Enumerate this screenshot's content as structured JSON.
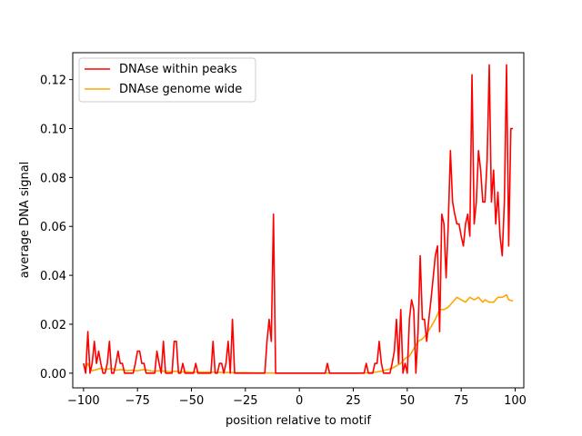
{
  "chart_data": {
    "type": "line",
    "xlabel": "position relative to motif",
    "ylabel": "average DNA signal",
    "xlim": [
      -105,
      104
    ],
    "ylim": [
      -0.006,
      0.131
    ],
    "x_ticks": [
      -100,
      -75,
      -50,
      -25,
      0,
      25,
      50,
      75,
      100
    ],
    "y_ticks": [
      0.0,
      0.02,
      0.04,
      0.06,
      0.08,
      0.1,
      0.12
    ],
    "x_tick_labels": [
      "−100",
      "−75",
      "−50",
      "−25",
      "0",
      "25",
      "50",
      "75",
      "100"
    ],
    "y_tick_labels": [
      "0.00",
      "0.02",
      "0.04",
      "0.06",
      "0.08",
      "0.10",
      "0.12"
    ],
    "grid": false,
    "legend_position": "upper-left",
    "series": [
      {
        "name": "DNAse within peaks",
        "color": "#ff0000",
        "points": [
          [
            -100,
            0.004
          ],
          [
            -99,
            0.0
          ],
          [
            -98,
            0.017
          ],
          [
            -97,
            0.0
          ],
          [
            -96,
            0.004
          ],
          [
            -95,
            0.013
          ],
          [
            -94,
            0.004
          ],
          [
            -93,
            0.009
          ],
          [
            -92,
            0.004
          ],
          [
            -91,
            0.0
          ],
          [
            -90,
            0.0
          ],
          [
            -89,
            0.004
          ],
          [
            -88,
            0.013
          ],
          [
            -87,
            0.0
          ],
          [
            -86,
            0.0
          ],
          [
            -85,
            0.004
          ],
          [
            -84,
            0.009
          ],
          [
            -83,
            0.004
          ],
          [
            -82,
            0.004
          ],
          [
            -81,
            0.0
          ],
          [
            -80,
            0.0
          ],
          [
            -79,
            0.0
          ],
          [
            -78,
            0.0
          ],
          [
            -77,
            0.0
          ],
          [
            -76,
            0.004
          ],
          [
            -75,
            0.009
          ],
          [
            -74,
            0.009
          ],
          [
            -73,
            0.004
          ],
          [
            -72,
            0.004
          ],
          [
            -71,
            0.0
          ],
          [
            -70,
            0.0
          ],
          [
            -69,
            0.0
          ],
          [
            -68,
            0.0
          ],
          [
            -67,
            0.0
          ],
          [
            -66,
            0.009
          ],
          [
            -65,
            0.004
          ],
          [
            -64,
            0.0
          ],
          [
            -63,
            0.013
          ],
          [
            -62,
            0.0
          ],
          [
            -61,
            0.0
          ],
          [
            -60,
            0.0
          ],
          [
            -59,
            0.0
          ],
          [
            -58,
            0.013
          ],
          [
            -57,
            0.013
          ],
          [
            -56,
            0.0
          ],
          [
            -55,
            0.0
          ],
          [
            -54,
            0.004
          ],
          [
            -53,
            0.0
          ],
          [
            -52,
            0.0
          ],
          [
            -51,
            0.0
          ],
          [
            -50,
            0.0
          ],
          [
            -49,
            0.0
          ],
          [
            -48,
            0.004
          ],
          [
            -47,
            0.0
          ],
          [
            -46,
            0.0
          ],
          [
            -45,
            0.0
          ],
          [
            -44,
            0.0
          ],
          [
            -43,
            0.0
          ],
          [
            -42,
            0.0
          ],
          [
            -41,
            0.0
          ],
          [
            -40,
            0.013
          ],
          [
            -39,
            0.0
          ],
          [
            -38,
            0.0
          ],
          [
            -37,
            0.004
          ],
          [
            -36,
            0.004
          ],
          [
            -35,
            0.0
          ],
          [
            -34,
            0.004
          ],
          [
            -33,
            0.013
          ],
          [
            -32,
            0.0
          ],
          [
            -31,
            0.022
          ],
          [
            -30,
            0.0
          ],
          [
            -29,
            0.0
          ],
          [
            -28,
            0.0
          ],
          [
            -27,
            0.0
          ],
          [
            -26,
            0.0
          ],
          [
            -25,
            0.0
          ],
          [
            -24,
            0.0
          ],
          [
            -23,
            0.0
          ],
          [
            -22,
            0.0
          ],
          [
            -21,
            0.0
          ],
          [
            -20,
            0.0
          ],
          [
            -19,
            0.0
          ],
          [
            -18,
            0.0
          ],
          [
            -17,
            0.0
          ],
          [
            -16,
            0.0
          ],
          [
            -15,
            0.013
          ],
          [
            -14,
            0.022
          ],
          [
            -13,
            0.013
          ],
          [
            -12,
            0.065
          ],
          [
            -11,
            0.0
          ],
          [
            -10,
            0.0
          ],
          [
            -9,
            0.0
          ],
          [
            -8,
            0.0
          ],
          [
            -7,
            0.0
          ],
          [
            -6,
            0.0
          ],
          [
            -5,
            0.0
          ],
          [
            -4,
            0.0
          ],
          [
            -3,
            0.0
          ],
          [
            -2,
            0.0
          ],
          [
            -1,
            0.0
          ],
          [
            0,
            0.0
          ],
          [
            1,
            0.0
          ],
          [
            2,
            0.0
          ],
          [
            3,
            0.0
          ],
          [
            4,
            0.0
          ],
          [
            5,
            0.0
          ],
          [
            6,
            0.0
          ],
          [
            7,
            0.0
          ],
          [
            8,
            0.0
          ],
          [
            9,
            0.0
          ],
          [
            10,
            0.0
          ],
          [
            11,
            0.0
          ],
          [
            12,
            0.0
          ],
          [
            13,
            0.004
          ],
          [
            14,
            0.0
          ],
          [
            15,
            0.0
          ],
          [
            16,
            0.0
          ],
          [
            17,
            0.0
          ],
          [
            18,
            0.0
          ],
          [
            19,
            0.0
          ],
          [
            20,
            0.0
          ],
          [
            21,
            0.0
          ],
          [
            22,
            0.0
          ],
          [
            23,
            0.0
          ],
          [
            24,
            0.0
          ],
          [
            25,
            0.0
          ],
          [
            26,
            0.0
          ],
          [
            27,
            0.0
          ],
          [
            28,
            0.0
          ],
          [
            29,
            0.0
          ],
          [
            30,
            0.0
          ],
          [
            31,
            0.004
          ],
          [
            32,
            0.0
          ],
          [
            33,
            0.0
          ],
          [
            34,
            0.0
          ],
          [
            35,
            0.004
          ],
          [
            36,
            0.004
          ],
          [
            37,
            0.013
          ],
          [
            38,
            0.004
          ],
          [
            39,
            0.0
          ],
          [
            40,
            0.0
          ],
          [
            41,
            0.0
          ],
          [
            42,
            0.0
          ],
          [
            43,
            0.004
          ],
          [
            44,
            0.009
          ],
          [
            45,
            0.022
          ],
          [
            46,
            0.004
          ],
          [
            47,
            0.026
          ],
          [
            48,
            0.0
          ],
          [
            49,
            0.004
          ],
          [
            50,
            0.0
          ],
          [
            51,
            0.022
          ],
          [
            52,
            0.03
          ],
          [
            53,
            0.026
          ],
          [
            54,
            0.0
          ],
          [
            55,
            0.017
          ],
          [
            56,
            0.048
          ],
          [
            57,
            0.022
          ],
          [
            58,
            0.022
          ],
          [
            59,
            0.013
          ],
          [
            60,
            0.022
          ],
          [
            61,
            0.03
          ],
          [
            62,
            0.039
          ],
          [
            63,
            0.048
          ],
          [
            64,
            0.052
          ],
          [
            65,
            0.017
          ],
          [
            66,
            0.065
          ],
          [
            67,
            0.061
          ],
          [
            68,
            0.039
          ],
          [
            69,
            0.061
          ],
          [
            70,
            0.091
          ],
          [
            71,
            0.07
          ],
          [
            72,
            0.065
          ],
          [
            73,
            0.061
          ],
          [
            74,
            0.061
          ],
          [
            75,
            0.056
          ],
          [
            76,
            0.052
          ],
          [
            77,
            0.061
          ],
          [
            78,
            0.065
          ],
          [
            79,
            0.056
          ],
          [
            80,
            0.122
          ],
          [
            81,
            0.061
          ],
          [
            82,
            0.07
          ],
          [
            83,
            0.091
          ],
          [
            84,
            0.083
          ],
          [
            85,
            0.07
          ],
          [
            86,
            0.07
          ],
          [
            87,
            0.087
          ],
          [
            88,
            0.126
          ],
          [
            89,
            0.07
          ],
          [
            90,
            0.083
          ],
          [
            91,
            0.061
          ],
          [
            92,
            0.074
          ],
          [
            93,
            0.056
          ],
          [
            94,
            0.048
          ],
          [
            95,
            0.07
          ],
          [
            96,
            0.126
          ],
          [
            97,
            0.052
          ],
          [
            98,
            0.1
          ],
          [
            99,
            0.1
          ]
        ]
      },
      {
        "name": "DNAse genome wide",
        "color": "#ffa500",
        "points": [
          [
            -100,
            0.003
          ],
          [
            -99,
            0.002
          ],
          [
            -98,
            0.004
          ],
          [
            -97,
            0.002
          ],
          [
            -96,
            0.001
          ],
          [
            -94,
            0.0015
          ],
          [
            -92,
            0.002
          ],
          [
            -90,
            0.0015
          ],
          [
            -87,
            0.002
          ],
          [
            -85,
            0.0012
          ],
          [
            -82,
            0.0015
          ],
          [
            -80,
            0.001
          ],
          [
            -78,
            0.0012
          ],
          [
            -75,
            0.001
          ],
          [
            -72,
            0.0015
          ],
          [
            -70,
            0.0012
          ],
          [
            -68,
            0.0008
          ],
          [
            -65,
            0.001
          ],
          [
            -62,
            0.0008
          ],
          [
            -60,
            0.0006
          ],
          [
            -57,
            0.0008
          ],
          [
            -55,
            0.0005
          ],
          [
            -52,
            0.0006
          ],
          [
            -50,
            0.0004
          ],
          [
            -45,
            0.0005
          ],
          [
            -40,
            0.0004
          ],
          [
            -35,
            0.0003
          ],
          [
            -30,
            0.0002
          ],
          [
            -25,
            0.0002
          ],
          [
            -20,
            0.0001
          ],
          [
            -15,
            0.0001
          ],
          [
            -10,
            0.0
          ],
          [
            -5,
            0.0
          ],
          [
            0,
            0.0
          ],
          [
            5,
            0.0
          ],
          [
            10,
            0.0
          ],
          [
            15,
            0.0
          ],
          [
            20,
            0.0
          ],
          [
            25,
            0.0
          ],
          [
            30,
            0.0001
          ],
          [
            33,
            0.0002
          ],
          [
            36,
            0.0005
          ],
          [
            39,
            0.001
          ],
          [
            41,
            0.0015
          ],
          [
            43,
            0.002
          ],
          [
            45,
            0.003
          ],
          [
            47,
            0.004
          ],
          [
            49,
            0.006
          ],
          [
            51,
            0.007
          ],
          [
            53,
            0.01
          ],
          [
            55,
            0.013
          ],
          [
            57,
            0.014
          ],
          [
            59,
            0.016
          ],
          [
            61,
            0.019
          ],
          [
            63,
            0.022
          ],
          [
            65,
            0.026
          ],
          [
            67,
            0.026
          ],
          [
            69,
            0.027
          ],
          [
            71,
            0.029
          ],
          [
            73,
            0.031
          ],
          [
            75,
            0.03
          ],
          [
            77,
            0.029
          ],
          [
            79,
            0.031
          ],
          [
            81,
            0.03
          ],
          [
            83,
            0.031
          ],
          [
            85,
            0.029
          ],
          [
            86,
            0.03
          ],
          [
            88,
            0.029
          ],
          [
            90,
            0.029
          ],
          [
            92,
            0.031
          ],
          [
            94,
            0.031
          ],
          [
            96,
            0.032
          ],
          [
            97,
            0.03
          ],
          [
            99,
            0.0295
          ]
        ]
      }
    ]
  }
}
